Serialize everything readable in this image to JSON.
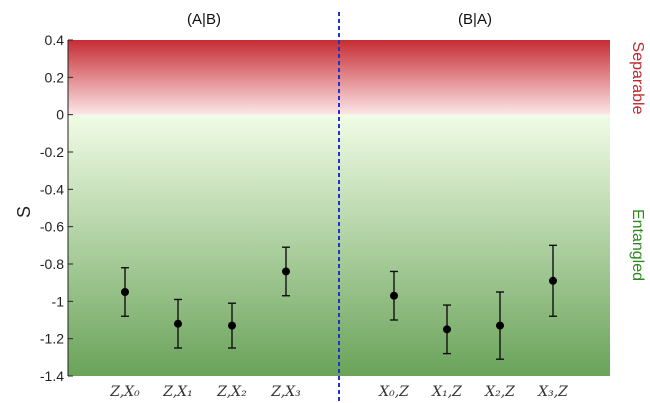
{
  "chart_data": {
    "type": "scatter",
    "ylabel": "S",
    "ylim": [
      -1.4,
      0.4
    ],
    "yticks": [
      "0.4",
      "0.2",
      "0",
      "-0.2",
      "-0.4",
      "-0.6",
      "-0.8",
      "-1",
      "-1.2",
      "-1.4"
    ],
    "grid": false,
    "panels": [
      {
        "title": "(A|B)",
        "categories": [
          "Z,X₀",
          "Z,X₁",
          "Z,X₂",
          "Z,X₃"
        ],
        "values": [
          -0.95,
          -1.12,
          -1.13,
          -0.84
        ],
        "err_low": [
          -1.08,
          -1.25,
          -1.25,
          -0.97
        ],
        "err_high": [
          -0.82,
          -0.99,
          -1.01,
          -0.71
        ]
      },
      {
        "title": "(B|A)",
        "categories": [
          "X₀,Z",
          "X₁,Z",
          "X₂,Z",
          "X₃,Z"
        ],
        "values": [
          -0.97,
          -1.15,
          -1.13,
          -0.89
        ],
        "err_low": [
          -1.1,
          -1.28,
          -1.31,
          -1.08
        ],
        "err_high": [
          -0.84,
          -1.02,
          -0.95,
          -0.7
        ]
      }
    ],
    "regions": {
      "separable_label": "Separable",
      "entangled_label": "Entangled"
    },
    "colors": {
      "separable": "#c0282d",
      "entangled": "#2e8a1e",
      "divider": "#2233cc",
      "marker": "#000000"
    }
  }
}
